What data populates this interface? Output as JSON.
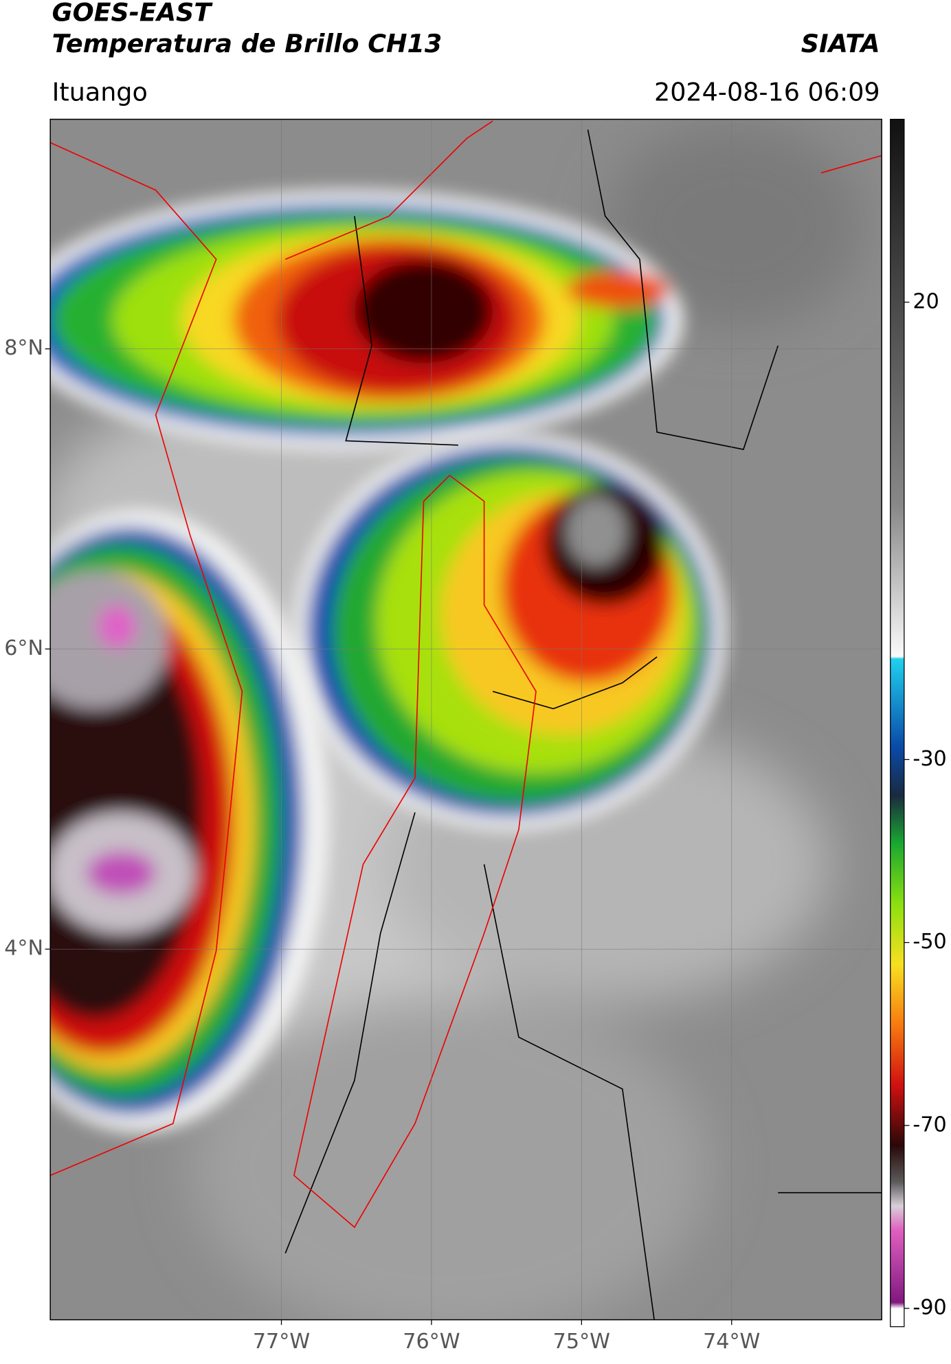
{
  "header": {
    "source": "GOES-EAST",
    "title": "Temperatura de Brillo CH13",
    "agency": "SIATA",
    "region": "Ituango",
    "datetime": "2024-08-16 06:09"
  },
  "map": {
    "xlim": [
      -78.54,
      -73.0
    ],
    "ylim": [
      1.53,
      9.53
    ],
    "xticks": [
      {
        "value": -77,
        "label": "77°W"
      },
      {
        "value": -76,
        "label": "76°W"
      },
      {
        "value": -75,
        "label": "75°W"
      },
      {
        "value": -74,
        "label": "74°W"
      }
    ],
    "yticks": [
      {
        "value": 4,
        "label": "4°N"
      },
      {
        "value": 6,
        "label": "6°N"
      },
      {
        "value": 8,
        "label": "8°N"
      }
    ],
    "grid": true
  },
  "colorbar": {
    "lim": [
      -92,
      40
    ],
    "ticks": [
      20,
      -30,
      -50,
      -70,
      -90
    ]
  }
}
